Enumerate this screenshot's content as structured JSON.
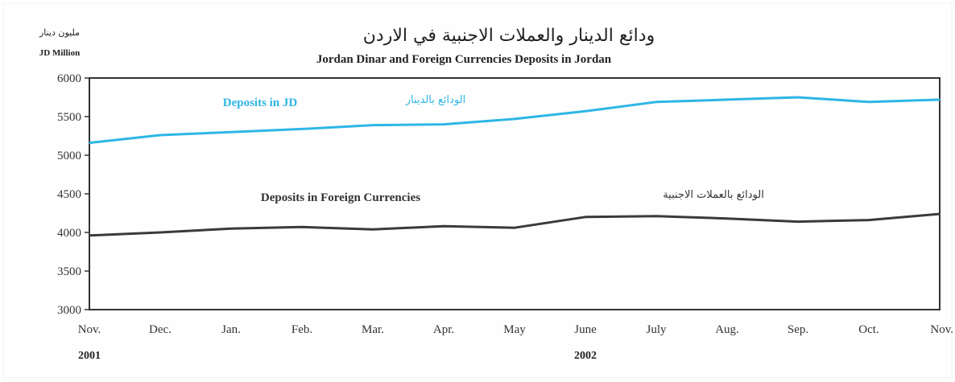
{
  "chart_data": {
    "type": "line",
    "title_ar": "ودائع الدينار والعملات الاجنبية في الاردن",
    "title": "Jordan Dinar and Foreign Currencies Deposits in Jordan",
    "unit_ar": "مليون دينار",
    "unit": "JD Million",
    "categories": [
      "Nov.",
      "Dec.",
      "Jan.",
      "Feb.",
      "Mar.",
      "Apr.",
      "May",
      "June",
      "July",
      "Aug.",
      "Sep.",
      "Oct.",
      "Nov."
    ],
    "years": [
      {
        "label": "2001",
        "index": 0
      },
      {
        "label": "2002",
        "index": 7
      }
    ],
    "ylim": [
      3000,
      6000
    ],
    "yticks": [
      3000,
      3500,
      4000,
      4500,
      5000,
      5500,
      6000
    ],
    "grid": false,
    "series": [
      {
        "name": "Deposits in JD",
        "name_ar": "الودائع بالدينار",
        "color": "#2eb6e6",
        "values": [
          5160,
          5260,
          5300,
          5340,
          5390,
          5400,
          5470,
          5570,
          5690,
          5720,
          5750,
          5690,
          5720
        ]
      },
      {
        "name": "Deposits in Foreign Currencies",
        "name_ar": "الودائع بالعملات الاجنبية",
        "color": "#3a3a3a",
        "values": [
          3960,
          4000,
          4050,
          4070,
          4040,
          4080,
          4060,
          4200,
          4210,
          4180,
          4140,
          4160,
          4240
        ]
      }
    ]
  }
}
